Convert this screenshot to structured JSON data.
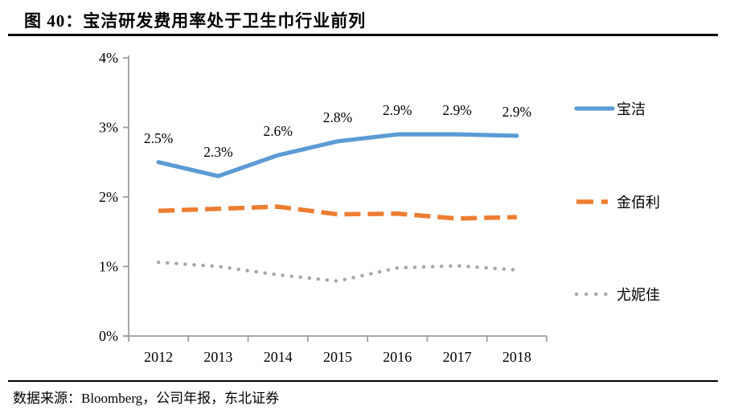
{
  "figure": {
    "title": "图 40：宝洁研发费用率处于卫生巾行业前列",
    "source": "数据来源：Bloomberg，公司年报，东北证券"
  },
  "colors": {
    "pg_blue": "#5B9BD5",
    "kimberly_orange": "#ED7D31",
    "unicharm_gray": "#A6A6A6",
    "axis_gray": "#9E9E9E",
    "text_black": "#000000",
    "rule_black": "#000000"
  },
  "chart_data": {
    "type": "line",
    "title": "宝洁研发费用率处于卫生巾行业前列",
    "xlabel": "",
    "ylabel": "",
    "categories": [
      "2012",
      "2013",
      "2014",
      "2015",
      "2016",
      "2017",
      "2018"
    ],
    "y_tick_labels": [
      "0%",
      "1%",
      "2%",
      "3%",
      "4%"
    ],
    "ylim": [
      0,
      4
    ],
    "grid": false,
    "legend_position": "right",
    "series": [
      {
        "key": "pg",
        "name": "宝洁",
        "color": "#5B9BD5",
        "style": "solid",
        "values": [
          2.5,
          2.3,
          2.6,
          2.8,
          2.9,
          2.9,
          2.88
        ],
        "labels": [
          "2.5%",
          "2.3%",
          "2.6%",
          "2.8%",
          "2.9%",
          "2.9%",
          "2.9%"
        ]
      },
      {
        "key": "kimberly-clark",
        "name": "金佰利",
        "color": "#ED7D31",
        "style": "dashed",
        "values": [
          1.8,
          1.83,
          1.86,
          1.75,
          1.76,
          1.69,
          1.71
        ],
        "labels": null
      },
      {
        "key": "unicharm",
        "name": "尤妮佳",
        "color": "#A6A6A6",
        "style": "dotted",
        "values": [
          1.06,
          1.0,
          0.88,
          0.79,
          0.98,
          1.01,
          0.95
        ],
        "labels": null
      }
    ]
  }
}
